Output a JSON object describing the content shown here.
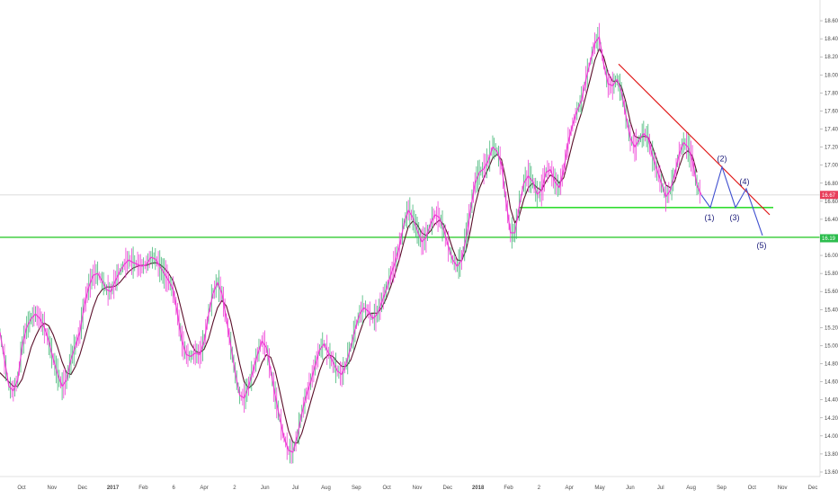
{
  "chart_data": {
    "type": "line",
    "title": "",
    "xlabel": "",
    "ylabel": "",
    "y_axis": {
      "side": "right",
      "ylim": [
        13.55,
        18.75
      ],
      "ticks": [
        "13.60",
        "13.80",
        "14.00",
        "14.20",
        "14.40",
        "14.60",
        "14.80",
        "15.00",
        "15.20",
        "15.40",
        "15.60",
        "15.80",
        "16.00",
        "16.20",
        "16.40",
        "16.60",
        "16.80",
        "17.00",
        "17.20",
        "17.40",
        "17.60",
        "17.80",
        "18.00",
        "18.20",
        "18.40",
        "18.60"
      ]
    },
    "x_axis": {
      "ticks": [
        {
          "label": "Oct",
          "year": false
        },
        {
          "label": "Nov",
          "year": false
        },
        {
          "label": "Dec",
          "year": false
        },
        {
          "label": "2017",
          "year": true
        },
        {
          "label": "Feb",
          "year": false
        },
        {
          "label": "6",
          "year": false
        },
        {
          "label": "Apr",
          "year": false
        },
        {
          "label": "2",
          "year": false
        },
        {
          "label": "Jun",
          "year": false
        },
        {
          "label": "Jul",
          "year": false
        },
        {
          "label": "Aug",
          "year": false
        },
        {
          "label": "Sep",
          "year": false
        },
        {
          "label": "Oct",
          "year": false
        },
        {
          "label": "Nov",
          "year": false
        },
        {
          "label": "Dec",
          "year": false
        },
        {
          "label": "2018",
          "year": true
        },
        {
          "label": "Feb",
          "year": false
        },
        {
          "label": "2",
          "year": false
        },
        {
          "label": "Apr",
          "year": false
        },
        {
          "label": "May",
          "year": false
        },
        {
          "label": "Jun",
          "year": false
        },
        {
          "label": "Jul",
          "year": false
        },
        {
          "label": "Aug",
          "year": false
        },
        {
          "label": "Sep",
          "year": false
        },
        {
          "label": "Oct",
          "year": false
        },
        {
          "label": "Nov",
          "year": false
        },
        {
          "label": "Dec",
          "year": false
        }
      ]
    },
    "grid": false,
    "price_series": [
      15.15,
      14.85,
      14.55,
      14.5,
      14.62,
      15.0,
      15.2,
      15.3,
      15.35,
      15.3,
      15.2,
      15.05,
      14.85,
      14.68,
      14.55,
      14.62,
      14.85,
      15.0,
      15.15,
      15.45,
      15.65,
      15.78,
      15.8,
      15.72,
      15.62,
      15.6,
      15.72,
      15.82,
      15.9,
      15.95,
      15.92,
      15.9,
      15.88,
      15.9,
      15.98,
      15.96,
      15.88,
      15.8,
      15.72,
      15.62,
      15.35,
      15.05,
      14.9,
      14.88,
      14.92,
      14.9,
      15.05,
      15.35,
      15.58,
      15.7,
      15.58,
      15.3,
      15.0,
      14.7,
      14.45,
      14.42,
      14.55,
      14.72,
      14.9,
      15.05,
      14.98,
      14.72,
      14.45,
      14.2,
      13.98,
      13.84,
      13.82,
      14.0,
      14.25,
      14.45,
      14.6,
      14.78,
      14.95,
      15.02,
      14.92,
      14.82,
      14.72,
      14.68,
      14.8,
      14.98,
      15.18,
      15.35,
      15.42,
      15.38,
      15.3,
      15.35,
      15.48,
      15.62,
      15.78,
      15.92,
      16.1,
      16.35,
      16.5,
      16.42,
      16.28,
      16.15,
      16.2,
      16.35,
      16.45,
      16.42,
      16.28,
      16.1,
      15.95,
      15.88,
      15.95,
      16.2,
      16.5,
      16.8,
      16.92,
      16.96,
      17.05,
      17.2,
      17.15,
      17.0,
      16.6,
      16.25,
      16.25,
      16.55,
      16.8,
      16.88,
      16.82,
      16.68,
      16.72,
      16.92,
      16.95,
      16.82,
      16.75,
      16.95,
      17.25,
      17.45,
      17.6,
      17.72,
      17.95,
      18.15,
      18.35,
      18.42,
      18.12,
      17.9,
      17.88,
      17.95,
      17.82,
      17.55,
      17.3,
      17.2,
      17.28,
      17.35,
      17.3,
      17.1,
      16.95,
      16.8,
      16.65,
      16.72,
      16.9,
      17.12,
      17.25,
      17.2,
      17.05,
      16.78,
      16.67
    ],
    "moving_average": [
      14.7,
      14.65,
      14.6,
      14.55,
      14.55,
      14.63,
      14.8,
      14.98,
      15.1,
      15.2,
      15.25,
      15.22,
      15.12,
      14.98,
      14.82,
      14.7,
      14.68,
      14.77,
      14.9,
      15.07,
      15.25,
      15.42,
      15.55,
      15.62,
      15.65,
      15.65,
      15.66,
      15.7,
      15.76,
      15.82,
      15.86,
      15.88,
      15.89,
      15.89,
      15.91,
      15.92,
      15.9,
      15.86,
      15.8,
      15.72,
      15.57,
      15.37,
      15.17,
      15.02,
      14.94,
      14.92,
      14.96,
      15.08,
      15.26,
      15.42,
      15.5,
      15.44,
      15.27,
      15.04,
      14.8,
      14.6,
      14.53,
      14.57,
      14.67,
      14.81,
      14.9,
      14.87,
      14.72,
      14.5,
      14.27,
      14.06,
      13.93,
      13.92,
      14.03,
      14.2,
      14.38,
      14.55,
      14.72,
      14.85,
      14.9,
      14.88,
      14.82,
      14.77,
      14.77,
      14.84,
      14.98,
      15.14,
      15.28,
      15.35,
      15.36,
      15.36,
      15.42,
      15.52,
      15.65,
      15.8,
      15.96,
      16.15,
      16.32,
      16.38,
      16.34,
      16.25,
      16.22,
      16.27,
      16.35,
      16.39,
      16.34,
      16.22,
      16.07,
      15.95,
      15.94,
      16.06,
      16.28,
      16.55,
      16.74,
      16.86,
      16.96,
      17.08,
      17.12,
      17.06,
      16.83,
      16.52,
      16.36,
      16.44,
      16.62,
      16.75,
      16.8,
      16.75,
      16.72,
      16.82,
      16.89,
      16.86,
      16.8,
      16.86,
      17.05,
      17.25,
      17.43,
      17.58,
      17.77,
      17.96,
      18.16,
      18.29,
      18.2,
      18.02,
      17.93,
      17.93,
      17.87,
      17.7,
      17.48,
      17.32,
      17.3,
      17.32,
      17.31,
      17.2,
      17.06,
      16.92,
      16.78,
      16.75,
      16.82,
      16.98,
      17.12,
      17.16,
      17.1,
      16.92
    ],
    "resistance_trendline": [
      [
        18.12,
        0
      ],
      [
        16.45,
        1
      ]
    ],
    "support_lines": [
      {
        "name": "support-upper",
        "value": 16.53,
        "color": "#33dd33"
      },
      {
        "name": "support-lower",
        "value": 16.2,
        "color": "#33cc33"
      }
    ],
    "current_price_line": 16.67,
    "price_badges": [
      {
        "text": "16.67",
        "value": 16.67,
        "color": "#e83e5a"
      },
      {
        "text": "16.19",
        "value": 16.19,
        "color": "#2dbd4e"
      }
    ],
    "wave_projection": [
      16.53,
      16.98,
      16.53,
      16.74,
      16.22
    ],
    "wave_labels": [
      "(1)",
      "(2)",
      "(3)",
      "(4)",
      "(5)"
    ],
    "colors": {
      "price": "#ee3bd5",
      "moving_average": "#5a0f2a",
      "resistance": "#e01515",
      "projection": "#4050d0",
      "wave_label": "#1a1a7a",
      "axis_text": "#4a4a4a"
    }
  }
}
